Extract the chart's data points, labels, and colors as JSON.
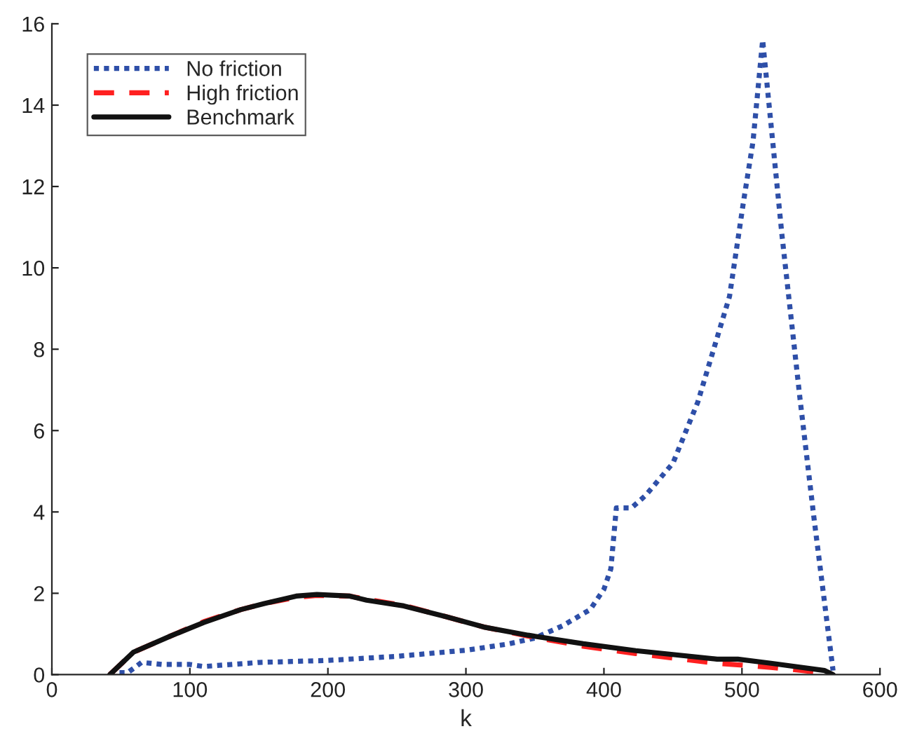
{
  "chart_data": {
    "type": "line",
    "xlabel": "k",
    "xlim": [
      0,
      600
    ],
    "ylim": [
      0,
      16
    ],
    "xticks": [
      0,
      100,
      200,
      300,
      400,
      500,
      600
    ],
    "yticks": [
      0,
      2,
      4,
      6,
      8,
      10,
      12,
      14,
      16
    ],
    "grid": false,
    "legend": "top left",
    "series": [
      {
        "name": "No friction",
        "color": "#2e4fa8",
        "line_style": "dotted",
        "x": [
          42,
          45,
          55,
          65,
          80,
          100,
          110,
          150,
          200,
          250,
          300,
          330,
          350,
          370,
          390,
          400,
          405,
          409,
          420,
          430,
          450,
          468,
          491,
          501,
          508,
          515,
          529,
          542,
          552,
          566
        ],
        "values": [
          0,
          0.05,
          0.05,
          0.3,
          0.25,
          0.25,
          0.2,
          0.3,
          0.35,
          0.45,
          0.6,
          0.75,
          0.9,
          1.2,
          1.6,
          2.1,
          2.6,
          4.1,
          4.1,
          4.4,
          5.2,
          6.7,
          9.3,
          11.6,
          13.1,
          15.6,
          10.8,
          6.8,
          3.9,
          0.1
        ]
      },
      {
        "name": "High friction",
        "color": "#ff2020",
        "line_style": "dashed",
        "x": [
          42,
          59,
          86,
          110,
          137,
          154,
          177,
          192,
          216,
          228,
          255,
          286,
          313,
          345,
          385,
          423,
          482,
          521,
          550,
          566
        ],
        "values": [
          0,
          0.55,
          0.95,
          1.3,
          1.6,
          1.75,
          1.9,
          1.95,
          1.93,
          1.85,
          1.7,
          1.42,
          1.17,
          0.95,
          0.7,
          0.52,
          0.28,
          0.18,
          0.08,
          0
        ]
      },
      {
        "name": "Benchmark",
        "color": "#111111",
        "line_style": "solid",
        "x": [
          42,
          59,
          86,
          110,
          137,
          154,
          177,
          192,
          216,
          228,
          255,
          286,
          313,
          345,
          385,
          423,
          482,
          497,
          521,
          560,
          566
        ],
        "values": [
          0,
          0.55,
          0.95,
          1.28,
          1.6,
          1.75,
          1.93,
          1.97,
          1.93,
          1.83,
          1.69,
          1.42,
          1.17,
          0.97,
          0.76,
          0.59,
          0.38,
          0.38,
          0.28,
          0.1,
          0
        ]
      }
    ]
  }
}
